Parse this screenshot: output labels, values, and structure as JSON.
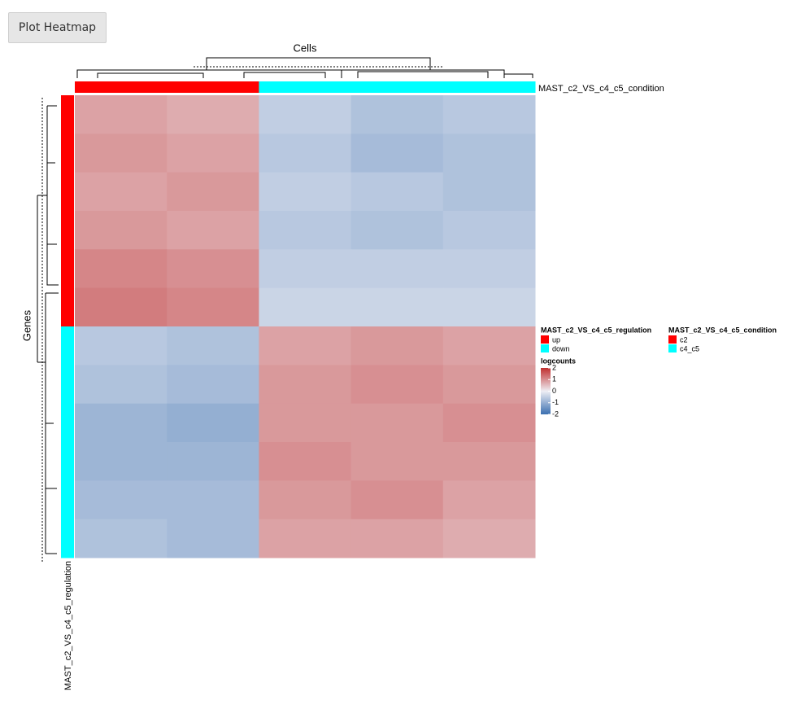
{
  "button": "Plot Heatmap",
  "chart_data": {
    "type": "heatmap",
    "column_title": "Cells",
    "row_title": "Genes",
    "column_annotation": [
      "c2",
      "c2",
      "c4_c5",
      "c4_c5",
      "c4_c5"
    ],
    "row_annotation": [
      "up",
      "up",
      "up",
      "up",
      "up",
      "up",
      "down",
      "down",
      "down",
      "down",
      "down",
      "down"
    ],
    "values": [
      [
        0.8,
        0.7,
        -0.5,
        -0.7,
        -0.6
      ],
      [
        0.9,
        0.8,
        -0.6,
        -0.8,
        -0.7
      ],
      [
        0.8,
        0.9,
        -0.5,
        -0.6,
        -0.7
      ],
      [
        0.9,
        0.8,
        -0.6,
        -0.7,
        -0.6
      ],
      [
        1.1,
        1.0,
        -0.5,
        -0.5,
        -0.5
      ],
      [
        1.2,
        1.1,
        -0.4,
        -0.4,
        -0.4
      ],
      [
        -0.6,
        -0.7,
        0.8,
        0.9,
        0.8
      ],
      [
        -0.7,
        -0.8,
        0.9,
        1.0,
        0.9
      ],
      [
        -0.9,
        -1.0,
        0.9,
        0.9,
        1.0
      ],
      [
        -0.9,
        -0.9,
        1.0,
        0.9,
        0.9
      ],
      [
        -0.8,
        -0.8,
        0.9,
        1.0,
        0.8
      ],
      [
        -0.7,
        -0.8,
        0.8,
        0.8,
        0.7
      ]
    ],
    "legends": [
      {
        "title": "MAST_c2_VS_c4_c5_regulation",
        "items": [
          {
            "label": "up",
            "color": "#ff0000"
          },
          {
            "label": "down",
            "color": "#00ffff"
          }
        ]
      },
      {
        "title": "MAST_c2_VS_c4_c5_condition",
        "items": [
          {
            "label": "c2",
            "color": "#ff0000"
          },
          {
            "label": "c4_c5",
            "color": "#00ffff"
          }
        ]
      }
    ],
    "colorbar": {
      "title": "logcounts",
      "lim": [
        -2,
        2
      ],
      "ticks": [
        2,
        1,
        0,
        -1,
        -2
      ],
      "colors": [
        "#3a6fb0",
        "#eeeef4",
        "#c0302f"
      ]
    }
  }
}
